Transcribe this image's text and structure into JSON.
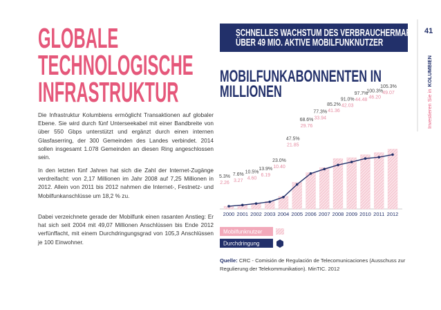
{
  "header": {
    "title_lines": [
      "GLOBALE",
      "TECHNOLOGISCHE",
      "INFRASTRUKTUR"
    ],
    "page_number": "41",
    "running_head": "Investieren Sie in",
    "running_head_bold": "KOLUMBIEN"
  },
  "body": {
    "paragraphs": [
      "Die Infrastruktur Kolumbiens ermöglicht Transaktionen auf globaler Ebene. Sie wird durch fünf Unterseekabel mit einer Bandbreite von über 550 Gbps unterstützt und ergänzt durch einen internen Glasfaserring, der 300 Gemeinden des Landes verbindet. 2014 sollen insgesamt 1.078 Gemeinden an diesen Ring angeschlossen sein.",
      "In den letzten fünf Jahren hat sich die Zahl der Internet-Zugänge verdreifacht: von 2,17 Millionen im Jahr 2008 auf 7,25 Millionen in 2012. Allein von 2011 bis 2012 nahmen die Internet-, Festnetz- und Mobilfunkanschlüsse um 18,2 % zu.",
      "Dabei verzeichnete gerade der Mobilfunk einen rasanten Anstieg: Er hat sich seit 2004 mit 49,07 Millionen Anschlüssen bis Ende 2012 verfünffacht, mit einem Durchdringungsgrad von 105,3 Anschlüssen je 100 Einwohner."
    ]
  },
  "banner": {
    "lines": [
      "SCHNELLES WACHSTUM DES VERBRAUCHERMARKTES:",
      "ÜBER 49 MIO. AKTIVE MOBILFUNKNUTZER"
    ]
  },
  "chart_data": {
    "type": "bar",
    "title_lines": [
      "MOBILFUNKABONNENTEN IN",
      "MILLIONEN"
    ],
    "categories": [
      "2000",
      "2001",
      "2002",
      "2003",
      "2004",
      "2005",
      "2006",
      "2007",
      "2008",
      "2009",
      "2010",
      "2011",
      "2012"
    ],
    "series": [
      {
        "name": "Mobilfunknutzer",
        "type": "bar",
        "color": "#f4c6d0",
        "values": [
          2.26,
          3.27,
          4.6,
          6.19,
          10.4,
          21.85,
          29.76,
          33.94,
          41.36,
          42.03,
          44.48,
          46.2,
          49.07
        ],
        "value_labels": [
          "2.26",
          "3.27",
          "4.60",
          "6.19",
          "10.40",
          "21.85",
          "29.76",
          "33.94",
          "41.36",
          "42.03",
          "44.48",
          "46.20",
          "49.07"
        ]
      },
      {
        "name": "Durchdringung",
        "type": "line",
        "axis": "y2",
        "color": "#22306a",
        "values": [
          5.3,
          7.6,
          10.5,
          13.9,
          23.0,
          47.5,
          68.6,
          77.3,
          85.2,
          91.0,
          97.7,
          100.3,
          105.3
        ],
        "value_labels": [
          "5.3%",
          "7.6%",
          "10.5%",
          "13.9%",
          "23.0%",
          "47.5%",
          "68.6%",
          "77.3%",
          "85.2%",
          "91.0%",
          "97.7%",
          "100.3%",
          "105.3%"
        ]
      }
    ],
    "ylim": [
      0,
      55
    ],
    "y2lim": [
      0,
      130
    ]
  },
  "source": {
    "label": "Quelle:",
    "text": "CRC - Comisión de Regulación de Telecomunicaciones (Ausschuss zur Regulierung der Telekommunikation). MinTIC. 2012"
  }
}
